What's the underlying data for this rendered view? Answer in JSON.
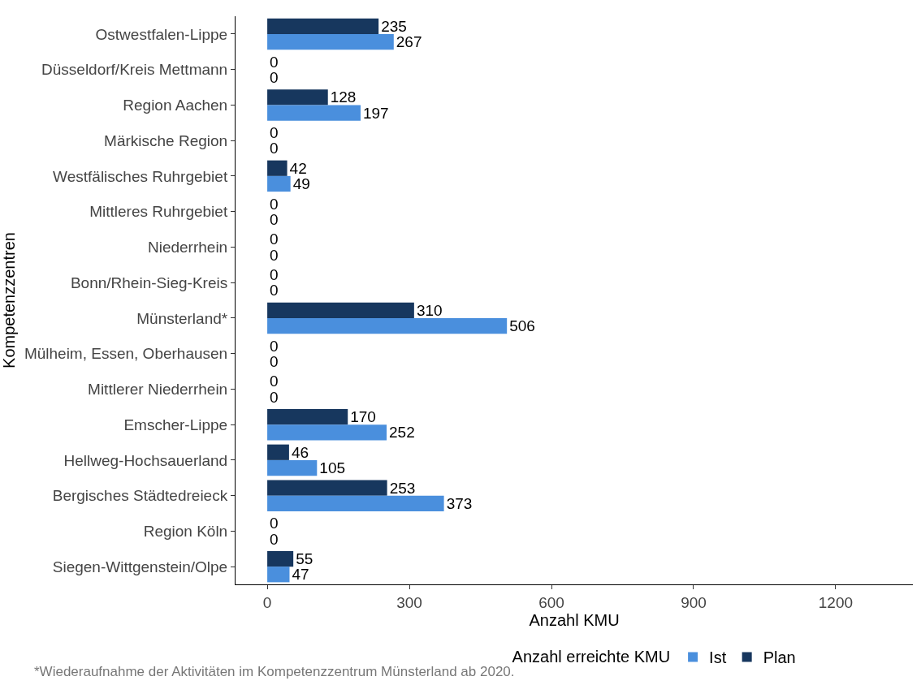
{
  "chart_data": {
    "type": "bar",
    "orientation": "horizontal",
    "categories": [
      "Ostwestfalen-Lippe",
      "Düsseldorf/Kreis Mettmann",
      "Region Aachen",
      "Märkische Region",
      "Westfälisches Ruhrgebiet",
      "Mittleres Ruhrgebiet",
      "Niederrhein",
      "Bonn/Rhein-Sieg-Kreis",
      "Münsterland*",
      "Mülheim, Essen, Oberhausen",
      "Mittlerer Niederrhein",
      "Emscher-Lippe",
      "Hellweg-Hochsauerland",
      "Bergisches Städtedreieck",
      "Region Köln",
      "Siegen-Wittgenstein/Olpe"
    ],
    "series": [
      {
        "name": "Plan",
        "color": "#17375e",
        "values": [
          235,
          0,
          128,
          0,
          42,
          0,
          0,
          0,
          310,
          0,
          0,
          170,
          46,
          253,
          0,
          55
        ]
      },
      {
        "name": "Ist",
        "color": "#4a8fdd",
        "values": [
          267,
          0,
          197,
          0,
          49,
          0,
          0,
          0,
          506,
          0,
          0,
          252,
          105,
          373,
          0,
          47
        ]
      }
    ],
    "xlabel": "Anzahl KMU",
    "ylabel": "Kompetenzzentren",
    "legend_title": "Anzahl erreichte KMU",
    "xlim": [
      -67,
      1363
    ],
    "xticks": [
      0,
      300,
      600,
      900,
      1200
    ],
    "grid": false,
    "legend": "bottom",
    "data_labels": true,
    "annotations": [
      "*Wiederaufnahme der Aktivitäten im Kompetenzzentrum Münsterland ab 2020."
    ]
  }
}
